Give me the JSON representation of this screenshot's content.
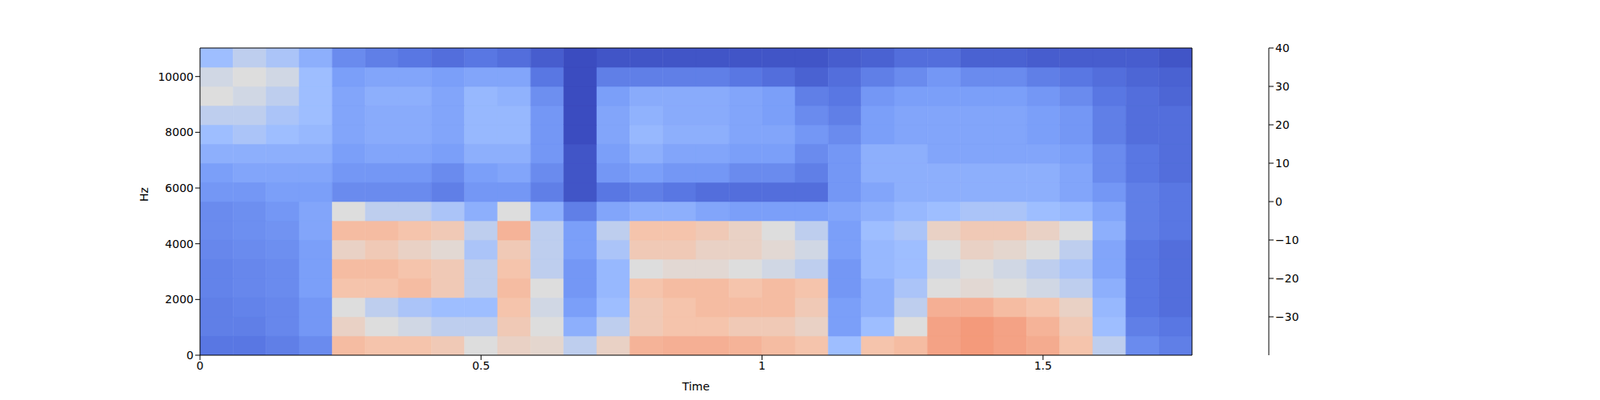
{
  "chart_data": {
    "type": "heatmap",
    "xlabel": "Time",
    "ylabel": "Hz",
    "xlim": [
      0,
      1.765
    ],
    "xticks": [
      0,
      0.5,
      1,
      1.5
    ],
    "ylim": [
      0,
      11025
    ],
    "yticks": [
      0,
      2000,
      4000,
      6000,
      8000,
      10000
    ],
    "x_bins": [
      0,
      0.0588,
      0.1177,
      0.1765,
      0.2353,
      0.2942,
      0.353,
      0.4118,
      0.4707,
      0.5295,
      0.5883,
      0.6472,
      0.706,
      0.7648,
      0.8237,
      0.8825,
      0.9413,
      1.0002,
      1.059,
      1.1178,
      1.1767,
      1.2355,
      1.2943,
      1.3532,
      1.412,
      1.4708,
      1.5297,
      1.5885,
      1.6473,
      1.7062,
      1.765
    ],
    "y_bins": [
      0,
      689,
      1378,
      2067,
      2756,
      3445,
      4134,
      4823,
      5513,
      6202,
      6891,
      7580,
      8269,
      8958,
      9647,
      10336,
      11025
    ],
    "cells": [
      [
        -30,
        -30,
        -28,
        -25,
        12,
        10,
        10,
        8,
        0,
        5,
        3,
        -5,
        5,
        14,
        15,
        15,
        14,
        12,
        10,
        -10,
        10,
        12,
        18,
        20,
        18,
        16,
        10,
        -5,
        -25,
        -28
      ],
      [
        -28,
        -28,
        -26,
        -22,
        5,
        0,
        -2,
        -5,
        -5,
        8,
        0,
        -15,
        -5,
        8,
        10,
        10,
        8,
        8,
        5,
        -20,
        -10,
        0,
        18,
        20,
        18,
        14,
        8,
        -10,
        -28,
        -30
      ],
      [
        -28,
        -27,
        -26,
        -22,
        0,
        -5,
        -8,
        -10,
        -10,
        10,
        -2,
        -20,
        -10,
        8,
        10,
        12,
        12,
        12,
        8,
        -20,
        -15,
        -5,
        15,
        15,
        12,
        10,
        5,
        -12,
        -30,
        -32
      ],
      [
        -27,
        -26,
        -25,
        -20,
        10,
        10,
        12,
        8,
        -5,
        12,
        0,
        -22,
        -12,
        10,
        12,
        12,
        10,
        12,
        10,
        -22,
        -15,
        -8,
        0,
        2,
        0,
        -2,
        -5,
        -15,
        -30,
        -32
      ],
      [
        -27,
        -26,
        -25,
        -20,
        12,
        12,
        10,
        8,
        -5,
        10,
        -5,
        -22,
        -12,
        0,
        2,
        2,
        0,
        -2,
        -5,
        -22,
        -12,
        -10,
        -2,
        0,
        -2,
        -5,
        -8,
        -18,
        -30,
        -32
      ],
      [
        -26,
        -25,
        -24,
        -20,
        5,
        8,
        5,
        2,
        -8,
        8,
        -5,
        -20,
        -8,
        8,
        8,
        5,
        5,
        2,
        -2,
        -20,
        -12,
        -10,
        0,
        5,
        3,
        0,
        -5,
        -18,
        -30,
        -32
      ],
      [
        -25,
        -24,
        -23,
        -18,
        12,
        12,
        10,
        8,
        -5,
        14,
        -5,
        -20,
        -5,
        10,
        10,
        8,
        5,
        0,
        -5,
        -20,
        -10,
        -8,
        5,
        8,
        8,
        5,
        0,
        -15,
        -28,
        -30
      ],
      [
        -25,
        -24,
        -22,
        -18,
        0,
        -5,
        -5,
        -8,
        -15,
        0,
        -15,
        -28,
        -18,
        -15,
        -15,
        -18,
        -20,
        -20,
        -20,
        -18,
        -15,
        -12,
        -10,
        -8,
        -8,
        -10,
        -12,
        -18,
        -28,
        -30
      ],
      [
        -22,
        -22,
        -20,
        -20,
        -25,
        -25,
        -25,
        -28,
        -22,
        -22,
        -28,
        -38,
        -30,
        -28,
        -30,
        -32,
        -32,
        -32,
        -32,
        -22,
        -18,
        -15,
        -15,
        -15,
        -15,
        -15,
        -18,
        -22,
        -28,
        -30
      ],
      [
        -20,
        -18,
        -18,
        -18,
        -22,
        -22,
        -22,
        -25,
        -20,
        -18,
        -25,
        -38,
        -22,
        -20,
        -22,
        -22,
        -25,
        -25,
        -28,
        -22,
        -15,
        -15,
        -15,
        -15,
        -15,
        -15,
        -18,
        -25,
        -30,
        -32
      ],
      [
        -15,
        -15,
        -15,
        -15,
        -20,
        -18,
        -18,
        -20,
        -15,
        -15,
        -22,
        -38,
        -20,
        -15,
        -18,
        -18,
        -20,
        -20,
        -25,
        -22,
        -15,
        -15,
        -18,
        -18,
        -18,
        -18,
        -20,
        -25,
        -30,
        -32
      ],
      [
        -10,
        -8,
        -10,
        -12,
        -18,
        -16,
        -16,
        -18,
        -12,
        -12,
        -22,
        -40,
        -18,
        -12,
        -15,
        -15,
        -18,
        -18,
        -22,
        -25,
        -20,
        -18,
        -18,
        -18,
        -18,
        -20,
        -22,
        -28,
        -32,
        -32
      ],
      [
        -5,
        -5,
        -8,
        -10,
        -18,
        -16,
        -16,
        -18,
        -12,
        -12,
        -22,
        -40,
        -18,
        -14,
        -16,
        -16,
        -18,
        -20,
        -25,
        -28,
        -20,
        -18,
        -18,
        -18,
        -18,
        -20,
        -22,
        -28,
        -32,
        -32
      ],
      [
        0,
        -2,
        -5,
        -10,
        -18,
        -15,
        -15,
        -18,
        -12,
        -14,
        -24,
        -40,
        -20,
        -16,
        -16,
        -16,
        -18,
        -20,
        -28,
        -30,
        -22,
        -20,
        -20,
        -20,
        -20,
        -22,
        -25,
        -30,
        -32,
        -34
      ],
      [
        -2,
        0,
        -2,
        -10,
        -20,
        -18,
        -18,
        -20,
        -18,
        -18,
        -30,
        -40,
        -28,
        -28,
        -28,
        -28,
        -30,
        -32,
        -35,
        -32,
        -28,
        -25,
        -22,
        -25,
        -25,
        -28,
        -30,
        -32,
        -34,
        -35
      ],
      [
        -10,
        -5,
        -8,
        -15,
        -25,
        -28,
        -30,
        -32,
        -30,
        -32,
        -36,
        -40,
        -38,
        -38,
        -38,
        -38,
        -38,
        -38,
        -38,
        -36,
        -35,
        -32,
        -32,
        -35,
        -35,
        -36,
        -36,
        -36,
        -36,
        -38
      ]
    ],
    "colorbar": {
      "lim": [
        -40,
        40
      ],
      "ticks": [
        {
          "value": -30,
          "label": "−30"
        },
        {
          "value": -20,
          "label": "−20"
        },
        {
          "value": -10,
          "label": "−10"
        },
        0,
        10,
        20,
        30,
        40
      ]
    }
  }
}
